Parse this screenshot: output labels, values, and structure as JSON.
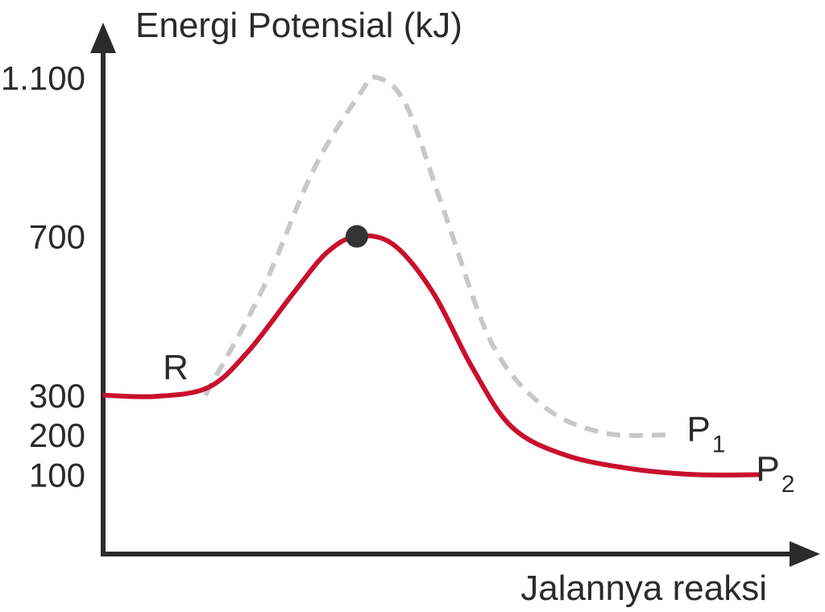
{
  "chart_data": {
    "type": "line",
    "title": "",
    "ylabel": "Energi Potensial (kJ)",
    "xlabel": "Jalannya reaksi",
    "y_ticks": [
      {
        "value": 100,
        "label": "100"
      },
      {
        "value": 200,
        "label": "200"
      },
      {
        "value": 300,
        "label": "300"
      },
      {
        "value": 700,
        "label": "700"
      },
      {
        "value": 1100,
        "label": "1.100"
      }
    ],
    "ylim": [
      -100,
      1200
    ],
    "xlim": [
      0,
      10
    ],
    "series": [
      {
        "style": "dashed",
        "color": "#c8c8c8",
        "points": [
          {
            "x": 1.55,
            "y": 300
          },
          {
            "x": 2.4,
            "y": 560
          },
          {
            "x": 3.2,
            "y": 870
          },
          {
            "x": 3.9,
            "y": 1060
          },
          {
            "x": 4.15,
            "y": 1100
          },
          {
            "x": 4.6,
            "y": 1030
          },
          {
            "x": 5.2,
            "y": 750
          },
          {
            "x": 5.9,
            "y": 430
          },
          {
            "x": 6.7,
            "y": 270
          },
          {
            "x": 7.6,
            "y": 205
          },
          {
            "x": 8.55,
            "y": 200
          }
        ]
      },
      {
        "style": "solid",
        "color": "#c8102e",
        "points": [
          {
            "x": 0.0,
            "y": 300
          },
          {
            "x": 0.8,
            "y": 297
          },
          {
            "x": 1.6,
            "y": 320
          },
          {
            "x": 2.2,
            "y": 410
          },
          {
            "x": 2.9,
            "y": 560
          },
          {
            "x": 3.4,
            "y": 660
          },
          {
            "x": 3.85,
            "y": 700
          },
          {
            "x": 4.4,
            "y": 680
          },
          {
            "x": 5.0,
            "y": 560
          },
          {
            "x": 5.6,
            "y": 370
          },
          {
            "x": 6.2,
            "y": 220
          },
          {
            "x": 7.0,
            "y": 150
          },
          {
            "x": 8.0,
            "y": 115
          },
          {
            "x": 9.0,
            "y": 100
          },
          {
            "x": 10.0,
            "y": 100
          }
        ]
      }
    ],
    "transition_state": {
      "x": 3.85,
      "y": 700,
      "color": "#333333"
    },
    "labels": [
      {
        "text": "R",
        "sub": "",
        "x": 1.1,
        "y": 340
      },
      {
        "text": "P",
        "sub": "1",
        "x": 9.15,
        "y": 185
      },
      {
        "text": "P",
        "sub": "2",
        "x": 10.2,
        "y": 85
      }
    ],
    "grid": false,
    "axis_color": "#2b2b2b"
  }
}
